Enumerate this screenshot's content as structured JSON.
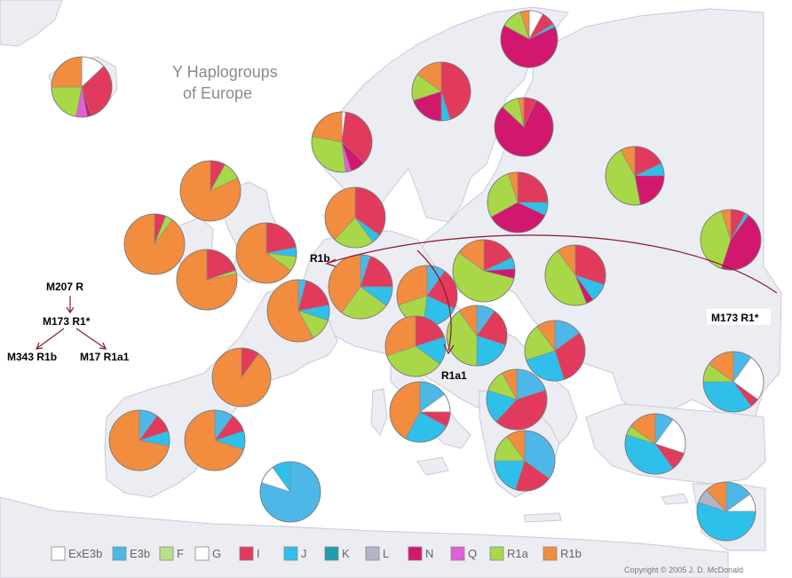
{
  "title_lines": [
    "Y Haplogroups",
    "of Europe"
  ],
  "tree": {
    "root": "M207 R",
    "mid": "M173 R1*",
    "left": "M343 R1b",
    "right": "M17 R1a1"
  },
  "annotations": {
    "r1b": "R1b",
    "r1a1": "R1a1",
    "m173_east": "M173 R1*"
  },
  "legend": [
    {
      "label": "ExE3b",
      "color": "#ffffff"
    },
    {
      "label": "E3b",
      "color": "#4db8e8"
    },
    {
      "label": "F",
      "color": "#b8e08a"
    },
    {
      "label": "G",
      "color": "#ffffff"
    },
    {
      "label": "I",
      "color": "#e23a5c"
    },
    {
      "label": "J",
      "color": "#2ec0ea"
    },
    {
      "label": "K",
      "color": "#1e9eaa"
    },
    {
      "label": "L",
      "color": "#b4b4c8"
    },
    {
      "label": "N",
      "color": "#d2176e"
    },
    {
      "label": "Q",
      "color": "#e060d8"
    },
    {
      "label": "R1a",
      "color": "#a8d848"
    },
    {
      "label": "R1b",
      "color": "#f28c3e"
    }
  ],
  "copyright": "Copyright © 2005  J. D. McDonald",
  "colors": {
    "sea": "#ffffff",
    "land": "#ececf3",
    "border": "#c9c9d6",
    "arrow": "#8a1a2a"
  }
}
